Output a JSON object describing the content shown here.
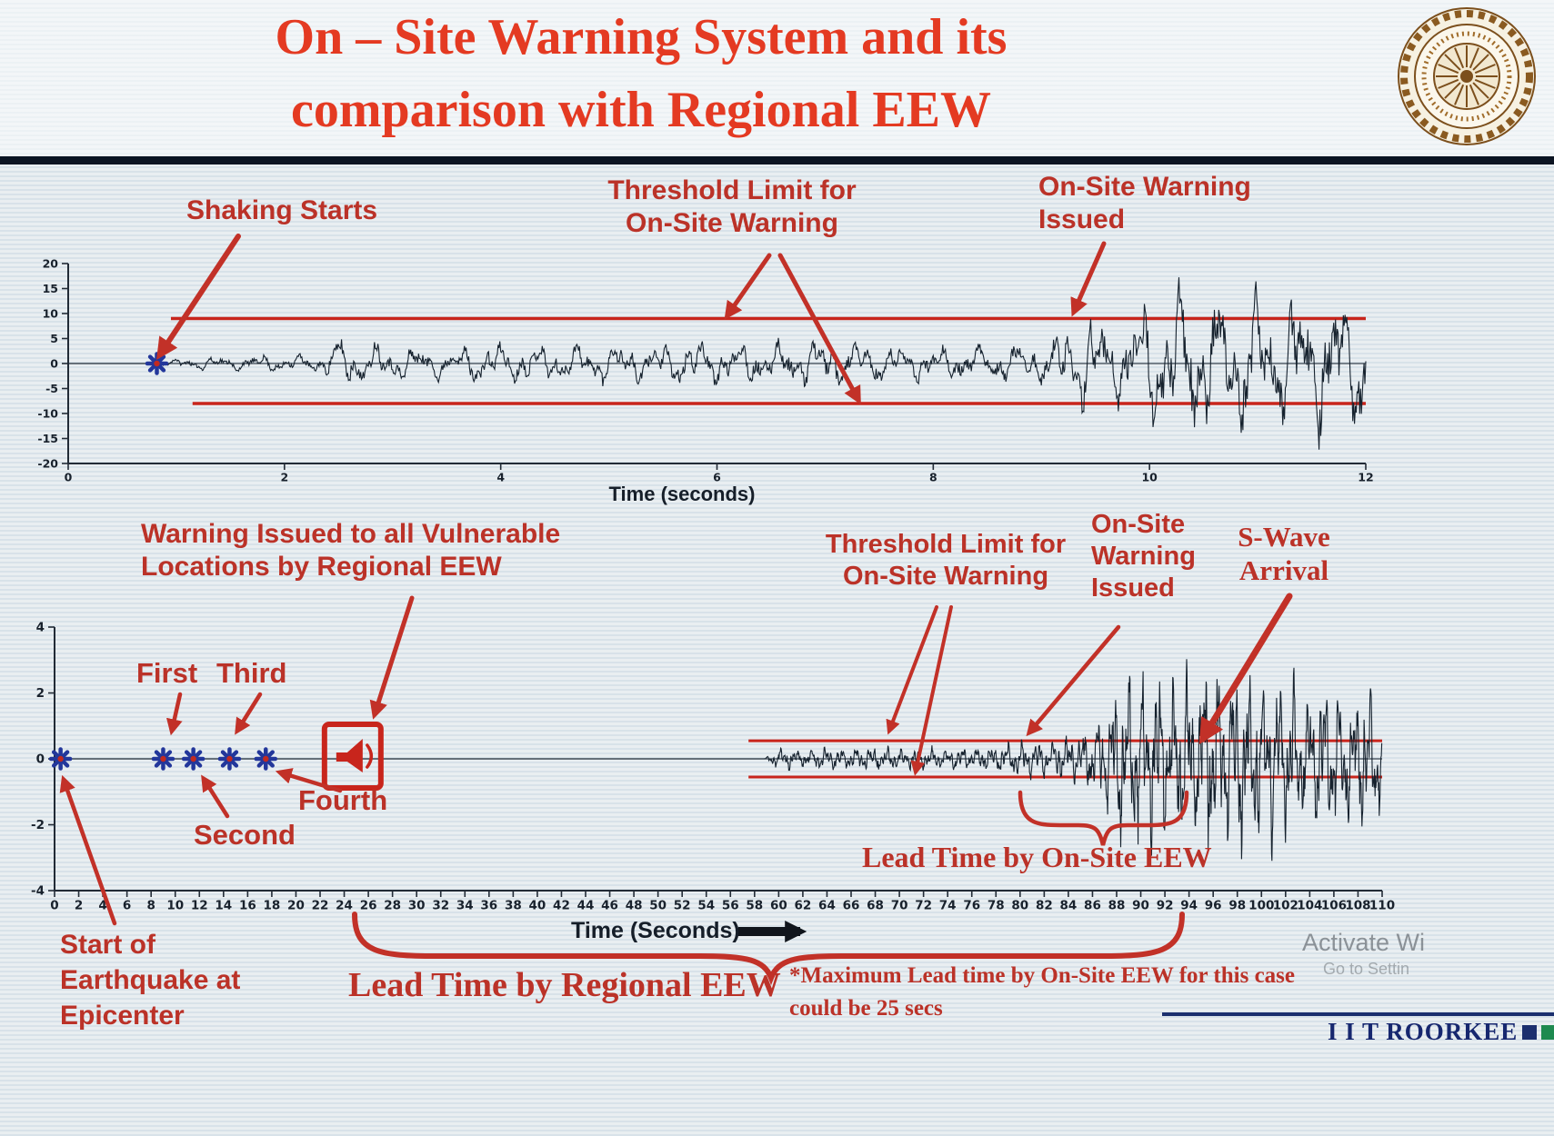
{
  "slide": {
    "title_line1": "On – Site Warning System and its",
    "title_line2": "comparison with Regional EEW"
  },
  "colors": {
    "title_red": "#e43a22",
    "annotation_red": "#bb3228",
    "threshold_red": "#c8251c",
    "waveform": "#16222e",
    "marker_blue": "#23379b",
    "footer_navy": "#16276f",
    "footer_green": "#1e8a50"
  },
  "labels": {
    "shaking_starts": "Shaking Starts",
    "threshold_limit_top": "Threshold Limit for On-Site Warning",
    "onsite_warning_issued_top": "On-Site Warning Issued",
    "regional_warning_issued": "Warning Issued to all Vulnerable Locations by Regional EEW",
    "threshold_limit_bottom": "Threshold Limit for On-Site Warning",
    "onsite_warning_issued_bottom": "On-Site Warning Issued",
    "s_wave_arrival": "S-Wave Arrival",
    "first": "First",
    "second": "Second",
    "third": "Third",
    "fourth": "Fourth",
    "start_of_earthquake": "Start of Earthquake at Epicenter",
    "lead_time_onsite": "Lead Time by On-Site EEW",
    "lead_time_regional": "Lead Time by Regional EEW",
    "max_lead_note_line1": "*Maximum Lead time by On-Site EEW for this case",
    "max_lead_note_line2": "could be 25 secs"
  },
  "footer": {
    "logo_text": "I I T ROORKEE"
  },
  "watermark": {
    "line1": "Activate Wi",
    "line2": "Go to Settin"
  },
  "chart_data": [
    {
      "type": "line",
      "xlabel": "Time (seconds)",
      "xlim": [
        0,
        12
      ],
      "ylim": [
        -20,
        20
      ],
      "xticks": [
        0,
        2,
        4,
        6,
        8,
        10,
        12
      ],
      "yticks": [
        20,
        15,
        10,
        5,
        0,
        -5,
        -10,
        -15,
        -20
      ],
      "tick_font": 12.5,
      "tick_weight": 600,
      "thresholds": [
        {
          "value": 9,
          "from": 0.95,
          "to": 12,
          "line_width": 3.5,
          "label": "Threshold Limit for On-Site Warning"
        },
        {
          "value": -8,
          "from": 1.15,
          "to": 12,
          "line_width": 3.5,
          "label": "Threshold Limit for On-Site Warning"
        }
      ],
      "events": [
        {
          "t": 0.82,
          "label": "Shaking Starts"
        },
        {
          "t": 9.3,
          "label": "On-Site Warning Issued"
        }
      ],
      "event_markers": [
        {
          "t": 0.82
        }
      ],
      "signal": {
        "seed": 11,
        "dt": 0.008,
        "freqs": [
          2.7,
          5.9,
          9.7
        ],
        "weights": [
          0.55,
          0.35,
          0.28
        ],
        "jitter": 0.7,
        "envelope": [
          [
            0,
            0
          ],
          [
            0.78,
            0
          ],
          [
            0.82,
            0.5
          ],
          [
            1.1,
            1.0
          ],
          [
            1.6,
            1.4
          ],
          [
            2.1,
            1.5
          ],
          [
            2.35,
            1.7
          ],
          [
            2.5,
            4.6
          ],
          [
            2.9,
            3.4
          ],
          [
            3.4,
            2.8
          ],
          [
            3.9,
            3.6
          ],
          [
            4.4,
            3.1
          ],
          [
            4.9,
            3.8
          ],
          [
            5.4,
            3.2
          ],
          [
            5.9,
            4.2
          ],
          [
            6.5,
            3.5
          ],
          [
            7.0,
            4.3
          ],
          [
            7.5,
            3.6
          ],
          [
            8.0,
            3.2
          ],
          [
            8.5,
            3.0
          ],
          [
            8.9,
            3.4
          ],
          [
            9.15,
            5.0
          ],
          [
            9.4,
            9.0
          ],
          [
            9.7,
            7.5
          ],
          [
            10.0,
            11.0
          ],
          [
            10.3,
            14.0
          ],
          [
            10.6,
            11.0
          ],
          [
            10.9,
            13.5
          ],
          [
            11.2,
            10.0
          ],
          [
            11.5,
            14.0
          ],
          [
            11.8,
            12.0
          ],
          [
            12.0,
            12.5
          ]
        ]
      }
    },
    {
      "type": "line",
      "xlabel": "Time (Seconds)",
      "xlim": [
        0,
        110
      ],
      "ylim": [
        -4,
        4
      ],
      "xticks": [
        0,
        2,
        4,
        6,
        8,
        10,
        12,
        14,
        16,
        18,
        20,
        22,
        24,
        26,
        28,
        30,
        32,
        34,
        36,
        38,
        40,
        42,
        44,
        46,
        48,
        50,
        52,
        54,
        56,
        58,
        60,
        62,
        64,
        66,
        68,
        70,
        72,
        74,
        76,
        78,
        80,
        82,
        84,
        86,
        88,
        90,
        92,
        94,
        96,
        98,
        100,
        102,
        104,
        106,
        108,
        110
      ],
      "yticks": [
        4,
        2,
        0,
        -2,
        -4
      ],
      "tick_font": 13.5,
      "tick_weight": 700,
      "thresholds": [
        {
          "value": 0.55,
          "from": 57.5,
          "to": 110,
          "line_width": 3,
          "label": "Threshold Limit for On-Site Warning"
        },
        {
          "value": -0.55,
          "from": 57.5,
          "to": 110,
          "line_width": 3,
          "label": "Threshold Limit for On-Site Warning"
        }
      ],
      "event_markers": [
        {
          "t": 0.5,
          "label": "Start of Earthquake at Epicenter"
        },
        {
          "t": 9,
          "label": "First"
        },
        {
          "t": 11.5,
          "label": "Second"
        },
        {
          "t": 14.5,
          "label": "Third"
        },
        {
          "t": 17.5,
          "label": "Fourth"
        }
      ],
      "regional_warning_icon": {
        "t": 24.7,
        "label": "Warning Issued to all Vulnerable Locations by Regional EEW"
      },
      "events": [
        {
          "t": 80,
          "label": "On-Site Warning Issued"
        },
        {
          "t": 93,
          "label": "S-Wave Arrival"
        }
      ],
      "lead_times": [
        {
          "label": "Lead Time by Regional EEW",
          "from": 24.7,
          "to": 93
        },
        {
          "label": "Lead Time by On-Site EEW",
          "from": 80,
          "to": 93,
          "note": "*Maximum Lead time by On-Site EEW for this case could be 25 secs"
        }
      ],
      "signal": {
        "seed": 23,
        "dt": 0.035,
        "freqs": [
          0.8,
          1.9,
          3.6
        ],
        "weights": [
          0.5,
          0.35,
          0.3
        ],
        "jitter": 0.6,
        "envelope": [
          [
            0,
            0
          ],
          [
            58.8,
            0
          ],
          [
            59.2,
            0.12
          ],
          [
            60,
            0.3
          ],
          [
            62,
            0.24
          ],
          [
            64,
            0.3
          ],
          [
            66,
            0.26
          ],
          [
            68,
            0.33
          ],
          [
            70,
            0.28
          ],
          [
            72,
            0.31
          ],
          [
            74,
            0.27
          ],
          [
            76,
            0.3
          ],
          [
            78,
            0.35
          ],
          [
            80,
            0.5
          ],
          [
            82,
            0.55
          ],
          [
            84,
            0.62
          ],
          [
            85.5,
            0.75
          ],
          [
            86.5,
            1.05
          ],
          [
            87.5,
            1.6
          ],
          [
            88.5,
            2.3
          ],
          [
            89.5,
            2.6
          ],
          [
            90.5,
            2.1
          ],
          [
            91.5,
            2.5
          ],
          [
            92.5,
            2.0
          ],
          [
            93.5,
            2.6
          ],
          [
            94.5,
            2.2
          ],
          [
            95.5,
            2.5
          ],
          [
            96.5,
            2.6
          ],
          [
            97.5,
            2.3
          ],
          [
            98.5,
            2.6
          ],
          [
            99.5,
            2.2
          ],
          [
            100.5,
            2.4
          ],
          [
            101.5,
            2.0
          ],
          [
            102.5,
            2.3
          ],
          [
            103.5,
            1.9
          ],
          [
            104.5,
            2.1
          ],
          [
            105.5,
            1.8
          ],
          [
            106.5,
            2.0
          ],
          [
            107.5,
            1.7
          ],
          [
            108.5,
            1.9
          ],
          [
            110,
            1.6
          ]
        ]
      }
    }
  ]
}
